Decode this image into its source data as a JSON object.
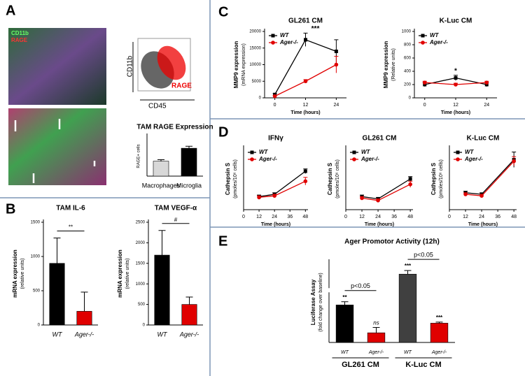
{
  "panel_labels": [
    "A",
    "B",
    "C",
    "D",
    "E"
  ],
  "stain_labels": [
    "CD11b",
    "RAGE"
  ],
  "flow": {
    "ylabel": "CD11b",
    "xlabel": "CD45",
    "gate": "RAGE"
  },
  "chart_data": [
    {
      "type": "bar",
      "title": "TAM RAGE Expression",
      "ylabel": "RAGE+ cells",
      "categories": [
        "Macrophages",
        "Microglia"
      ],
      "values": [
        30,
        56
      ],
      "errors": [
        3,
        4
      ],
      "colors": [
        "#d8d8d8",
        "#000000"
      ],
      "ylim": [
        0,
        80
      ]
    },
    {
      "type": "bar",
      "title": "TAM IL-6",
      "ylabel": "mRNA expression",
      "ylabel2": "(relative units)",
      "categories": [
        "WT",
        "Ager-/-"
      ],
      "values": [
        900,
        200
      ],
      "errors": [
        370,
        280
      ],
      "colors": [
        "#000000",
        "#e00000"
      ],
      "ylim": [
        0,
        1500
      ],
      "yticks": [
        0,
        500,
        1000,
        1500
      ],
      "significance": "**"
    },
    {
      "type": "bar",
      "title": "TAM VEGF-α",
      "ylabel": "mRNA expression",
      "ylabel2": "(relative units)",
      "categories": [
        "WT",
        "Ager-/-"
      ],
      "values": [
        1700,
        500
      ],
      "errors": [
        600,
        180
      ],
      "colors": [
        "#000000",
        "#e00000"
      ],
      "ylim": [
        0,
        2500
      ],
      "yticks": [
        0,
        500,
        1000,
        1500,
        2000,
        2500
      ],
      "significance": "#"
    },
    {
      "type": "line",
      "title": "GL261 CM",
      "ylabel": "MMP9 expression",
      "ylabel2": "(mRNA expression)",
      "xlabel": "Time (hours)",
      "x": [
        0,
        12,
        24
      ],
      "xlim": [
        -4,
        28
      ],
      "xticks": [
        0,
        12,
        24
      ],
      "ylim": [
        0,
        20000
      ],
      "yticks": [
        0,
        5000,
        10000,
        15000,
        20000
      ],
      "annotation": "***",
      "series": [
        {
          "name": "WT",
          "color": "#000000",
          "marker": "square",
          "values": [
            1000,
            17500,
            14000
          ],
          "errors": [
            300,
            2000,
            3500
          ]
        },
        {
          "name": "Ager-/-",
          "color": "#e00000",
          "marker": "circle",
          "values": [
            500,
            5000,
            10000
          ],
          "errors": [
            200,
            500,
            2500
          ]
        }
      ]
    },
    {
      "type": "line",
      "title": "K-Luc CM",
      "ylabel": "MMP9 expression",
      "ylabel2": "(Relative units)",
      "xlabel": "Time (hours)",
      "x": [
        0,
        12,
        24
      ],
      "xlim": [
        -4,
        28
      ],
      "xticks": [
        0,
        12,
        24
      ],
      "ylim": [
        0,
        1000
      ],
      "yticks": [
        0,
        200,
        400,
        600,
        800,
        1000
      ],
      "annotation": "*",
      "series": [
        {
          "name": "WT",
          "color": "#000000",
          "marker": "square",
          "values": [
            200,
            300,
            200
          ],
          "errors": [
            30,
            40,
            30
          ]
        },
        {
          "name": "Ager-/-",
          "color": "#e00000",
          "marker": "circle",
          "values": [
            230,
            200,
            230
          ],
          "errors": [
            20,
            20,
            20
          ]
        }
      ]
    },
    {
      "type": "line",
      "title": "IFNγ",
      "ylabel": "Cathepsin S",
      "ylabel2": "(pmoles/10⁶ cells)",
      "xlabel": "Time (hours)",
      "x": [
        12,
        24,
        48
      ],
      "xlim": [
        0,
        50
      ],
      "xticks": [
        0,
        12,
        24,
        36,
        48
      ],
      "ylim": [
        0,
        0.8
      ],
      "series": [
        {
          "name": "WT",
          "color": "#000000",
          "marker": "square",
          "values": [
            0.17,
            0.2,
            0.5
          ],
          "errors": [
            0.02,
            0.02,
            0.03
          ]
        },
        {
          "name": "Ager-/-",
          "color": "#e00000",
          "marker": "circle",
          "values": [
            0.16,
            0.18,
            0.37
          ],
          "errors": [
            0.02,
            0.02,
            0.05
          ]
        }
      ]
    },
    {
      "type": "line",
      "title": "GL261 CM",
      "ylabel": "Cathepsin S",
      "ylabel2": "(pmoles/10⁶ cells)",
      "xlabel": "Time (hours)",
      "x": [
        12,
        24,
        48
      ],
      "xlim": [
        0,
        50
      ],
      "xticks": [
        0,
        12,
        24,
        36,
        48
      ],
      "ylim": [
        0,
        0.8
      ],
      "series": [
        {
          "name": "WT",
          "color": "#000000",
          "marker": "square",
          "values": [
            0.17,
            0.14,
            0.4
          ],
          "errors": [
            0.02,
            0.02,
            0.03
          ]
        },
        {
          "name": "Ager-/-",
          "color": "#e00000",
          "marker": "circle",
          "values": [
            0.15,
            0.12,
            0.33
          ],
          "errors": [
            0.02,
            0.02,
            0.04
          ]
        }
      ]
    },
    {
      "type": "line",
      "title": "K-Luc CM",
      "ylabel": "Cathepsin S",
      "ylabel2": "(pmoles/10⁶ cells)",
      "xlabel": "Time (hours)",
      "x": [
        12,
        24,
        48
      ],
      "xlim": [
        0,
        50
      ],
      "xticks": [
        0,
        12,
        24,
        36,
        48
      ],
      "ylim": [
        0,
        0.8
      ],
      "series": [
        {
          "name": "WT",
          "color": "#000000",
          "marker": "square",
          "values": [
            0.22,
            0.2,
            0.65
          ],
          "errors": [
            0.02,
            0.02,
            0.1
          ]
        },
        {
          "name": "Ager-/-",
          "color": "#e00000",
          "marker": "circle",
          "values": [
            0.2,
            0.18,
            0.63
          ],
          "errors": [
            0.02,
            0.02,
            0.06
          ]
        }
      ]
    },
    {
      "type": "bar",
      "title": "Ager Promotor Activity (12h)",
      "ylabel": "Luciferase Assay",
      "ylabel2": "(fold change over baseline)",
      "categories": [
        "WT",
        "Ager-/-",
        "WT",
        "Ager-/-"
      ],
      "groups": [
        "GL261 CM",
        "K-Luc CM"
      ],
      "values": [
        3.5,
        0.9,
        16,
        1.8
      ],
      "errors": [
        0.3,
        0.5,
        0.3,
        0.1
      ],
      "colors": [
        "#000000",
        "#e00000",
        "#404040",
        "#e00000"
      ],
      "ylim": [
        0,
        17
      ],
      "ybreak": [
        4.5,
        15
      ],
      "bar_marks": [
        "**",
        "ns",
        "***",
        "***"
      ],
      "brackets": [
        "p<0.05",
        "p<0.05"
      ]
    }
  ]
}
